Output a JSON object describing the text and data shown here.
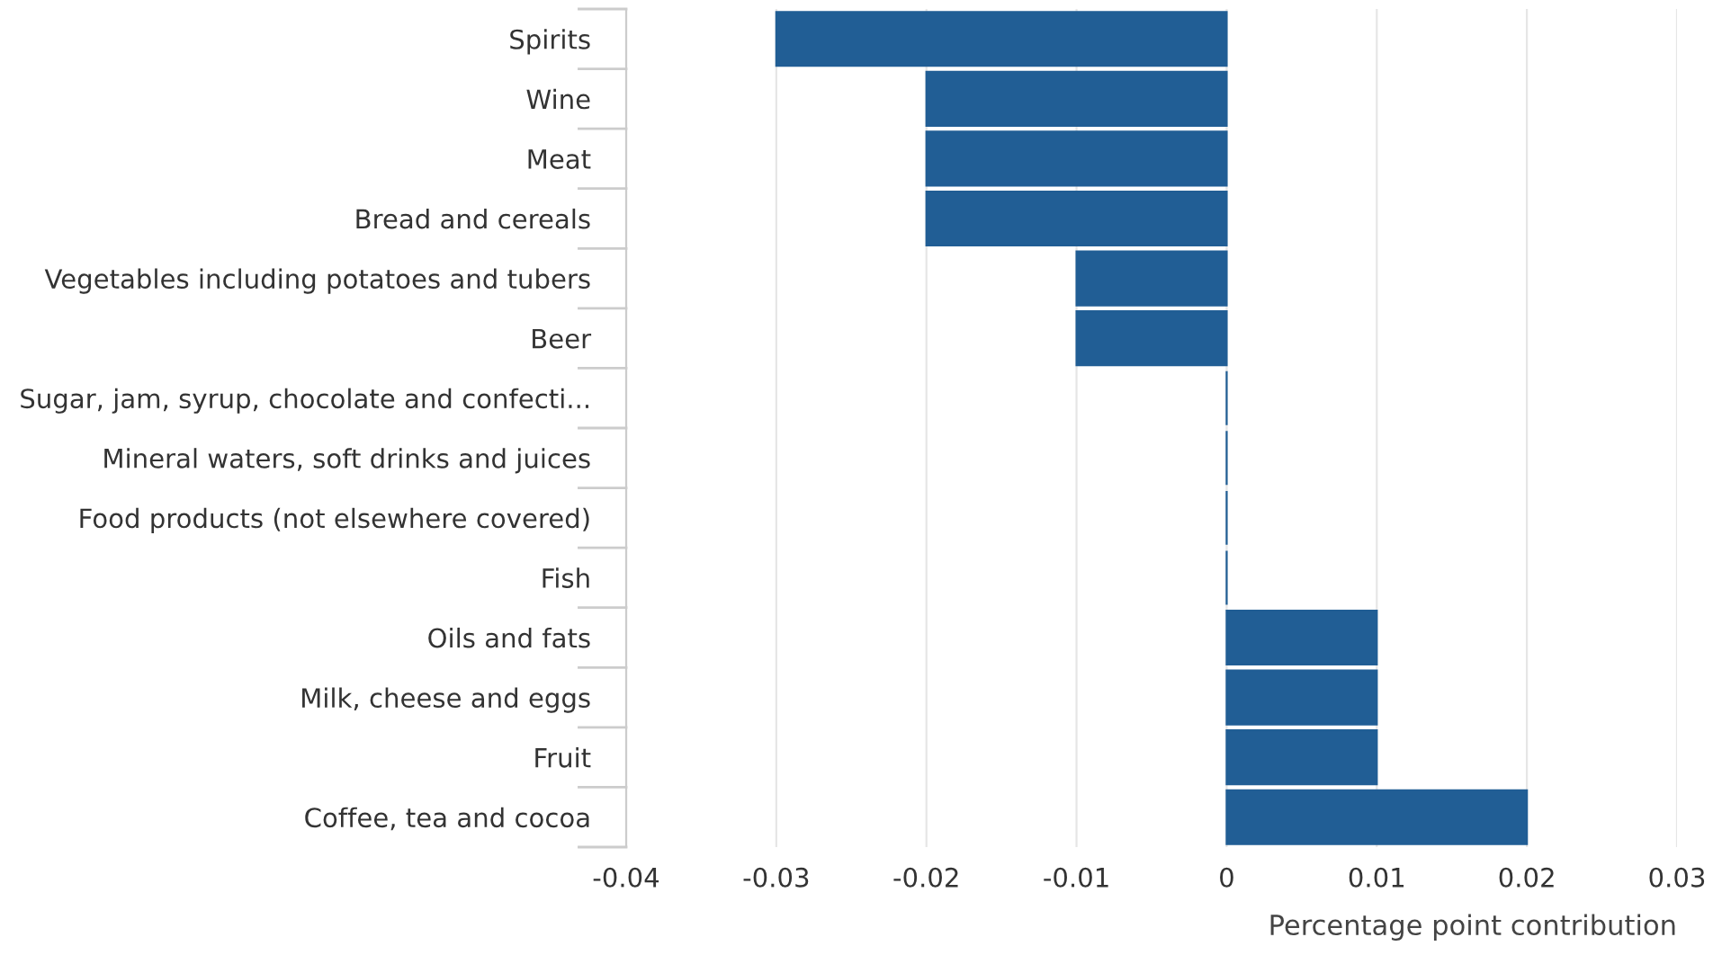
{
  "chart_data": {
    "type": "bar",
    "orientation": "horizontal",
    "xlabel": "Percentage point contribution",
    "categories": [
      "Spirits",
      "Wine",
      "Meat",
      "Bread and cereals",
      "Vegetables including potatoes and tubers",
      "Beer",
      "Sugar, jam, syrup, chocolate and confecti...",
      "Mineral waters, soft drinks and juices",
      "Food products (not elsewhere covered)",
      "Fish",
      "Oils and fats",
      "Milk, cheese and eggs",
      "Fruit",
      "Coffee, tea and cocoa"
    ],
    "values": [
      -0.03,
      -0.02,
      -0.02,
      -0.02,
      -0.01,
      -0.01,
      0,
      0,
      0,
      0,
      0.01,
      0.01,
      0.01,
      0.02
    ],
    "color": "#215e95",
    "xlim": [
      -0.04,
      0.03
    ],
    "xticks": [
      -0.04,
      -0.03,
      -0.02,
      -0.01,
      0,
      0.01,
      0.02,
      0.03
    ],
    "grid": "x"
  }
}
